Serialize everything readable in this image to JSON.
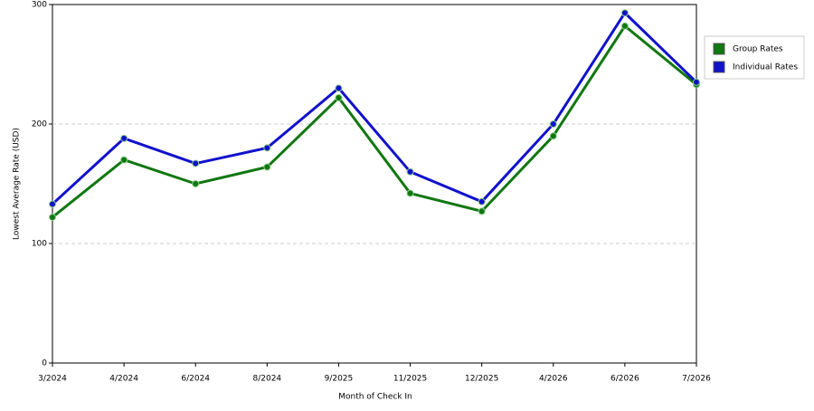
{
  "chart_data": {
    "type": "line",
    "x_label": "Month of Check In",
    "y_label": "Lowest Average Rate (USD)",
    "categories": [
      "3/2024",
      "4/2024",
      "6/2024",
      "8/2024",
      "9/2025",
      "11/2025",
      "12/2025",
      "4/2026",
      "6/2026",
      "7/2026"
    ],
    "series": [
      {
        "name": "Group Rates",
        "color": "#117711",
        "values": [
          122,
          170,
          150,
          164,
          222,
          142,
          127,
          190,
          282,
          233
        ]
      },
      {
        "name": "Individual Rates",
        "color": "#1111cc",
        "values": [
          133,
          188,
          167,
          180,
          230,
          160,
          135,
          200,
          293,
          235
        ]
      }
    ],
    "ylim": [
      0,
      300
    ],
    "yticks": [
      0,
      100,
      200,
      300
    ],
    "grid": true,
    "legend": "right"
  }
}
